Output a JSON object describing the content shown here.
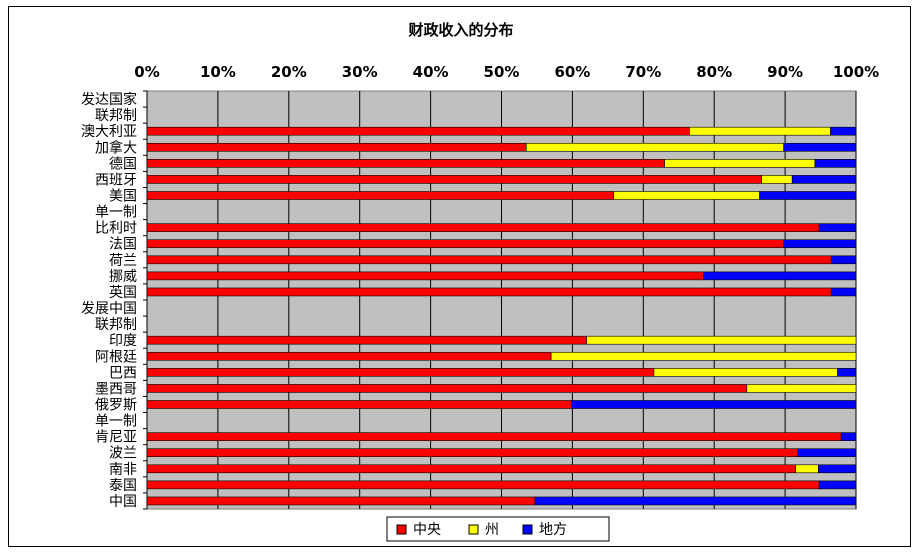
{
  "chart_data": {
    "type": "bar",
    "orientation": "horizontal",
    "stacked": "percent",
    "title": "财政收入的分布",
    "xlim": [
      0,
      100
    ],
    "x_ticks": [
      "0%",
      "10%",
      "20%",
      "30%",
      "40%",
      "50%",
      "60%",
      "70%",
      "80%",
      "90%",
      "100%"
    ],
    "grid": true,
    "legend_position": "bottom",
    "categories": [
      "发达国家",
      "联邦制",
      "澳大利亚",
      "加拿大",
      "德国",
      "西班牙",
      "美国",
      "单一制",
      "比利时",
      "法国",
      "荷兰",
      "挪威",
      "英国",
      "发展中国",
      "联邦制",
      "印度",
      "阿根廷",
      "巴西",
      "墨西哥",
      "俄罗斯",
      "单一制",
      "肯尼亚",
      "波兰",
      "南非",
      "泰国",
      "中国"
    ],
    "series": [
      {
        "name": "中央",
        "color": "#ff0000",
        "values": [
          0,
          0,
          76.5,
          53.5,
          73,
          86.7,
          65.8,
          0,
          94.8,
          89.8,
          96.5,
          78.5,
          96.5,
          0,
          0,
          62,
          57,
          71.5,
          84.6,
          59.9,
          0,
          97.9,
          91.8,
          91.5,
          94.8,
          54.7
        ]
      },
      {
        "name": "州",
        "color": "#ffff00",
        "values": [
          0,
          0,
          19.9,
          36.3,
          21.2,
          4.3,
          20.6,
          0,
          0,
          0,
          0,
          0,
          0,
          0,
          0,
          38,
          43,
          25.9,
          15.4,
          0,
          0,
          0,
          0,
          3.2,
          0,
          0
        ]
      },
      {
        "name": "地方",
        "color": "#0000ff",
        "values": [
          0,
          0,
          3.6,
          10.2,
          5.8,
          9,
          13.6,
          0,
          5.2,
          10.2,
          3.5,
          21.5,
          3.5,
          0,
          0,
          0,
          0,
          2.6,
          0,
          40.1,
          0,
          2.1,
          8.2,
          5.3,
          5.2,
          45.3
        ]
      }
    ]
  }
}
